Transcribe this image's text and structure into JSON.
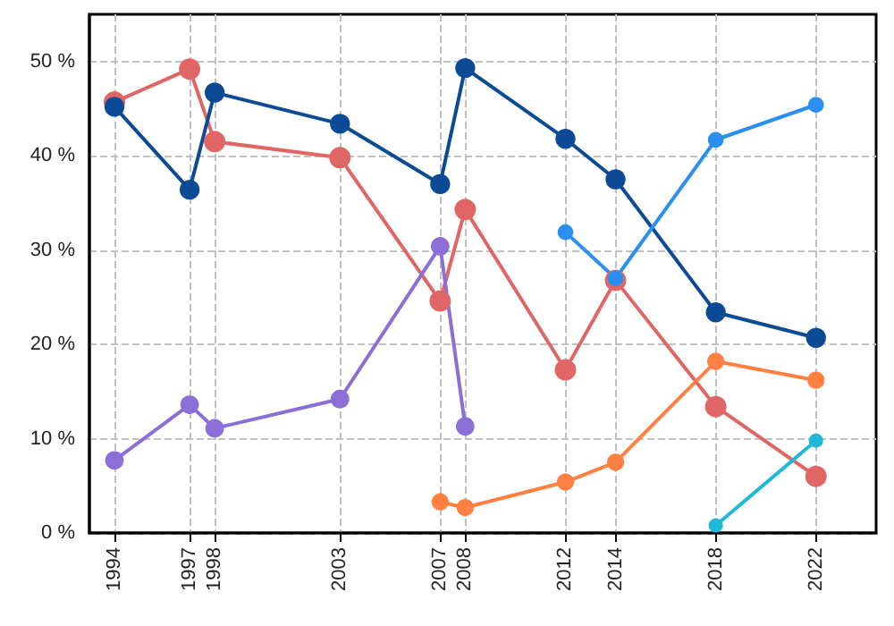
{
  "chart_data": {
    "type": "line",
    "marker": "circle",
    "grid": true,
    "xlim": [
      1993,
      2024.4
    ],
    "xticks": [
      1994,
      1997,
      1998,
      2003,
      2007,
      2008,
      2012,
      2014,
      2018,
      2022
    ],
    "ylim": [
      0,
      55
    ],
    "yticks": [
      {
        "value": 0,
        "label": "0 %"
      },
      {
        "value": 10,
        "label": "10 %"
      },
      {
        "value": 20,
        "label": "20 %"
      },
      {
        "value": 30,
        "label": "30 %"
      },
      {
        "value": 40,
        "label": "40 %"
      },
      {
        "value": 50,
        "label": "50 %"
      }
    ],
    "series": [
      {
        "color": "#e06666",
        "x": [
          1994,
          1997,
          1998,
          2003,
          2007,
          2008,
          2012,
          2014,
          2018,
          2022
        ],
        "values": [
          45.7,
          49.2,
          41.5,
          39.8,
          24.6,
          34.3,
          17.3,
          26.8,
          13.4,
          6.0
        ]
      },
      {
        "color": "#0b4a94",
        "x": [
          1994,
          1997,
          1998,
          2003,
          2007,
          2008,
          2012,
          2014,
          2018,
          2022
        ],
        "values": [
          45.2,
          36.4,
          46.7,
          43.4,
          37.0,
          49.3,
          41.8,
          37.5,
          23.4,
          20.7
        ]
      },
      {
        "color": "#8b6fd6",
        "x": [
          1994,
          1997,
          1998,
          2003,
          2007,
          2008
        ],
        "values": [
          7.7,
          13.6,
          11.1,
          14.2,
          30.4,
          11.3
        ]
      },
      {
        "color": "#ff8040",
        "x": [
          2007,
          2008,
          2012,
          2014,
          2018,
          2022
        ],
        "values": [
          3.3,
          2.7,
          5.4,
          7.5,
          18.2,
          16.2
        ]
      },
      {
        "color": "#2a8ff0",
        "x": [
          2012,
          2014,
          2018,
          2022
        ],
        "values": [
          31.9,
          27.0,
          41.7,
          45.4
        ]
      },
      {
        "color": "#20b8d8",
        "x": [
          2018,
          2022
        ],
        "values": [
          0.8,
          9.8
        ]
      }
    ]
  }
}
